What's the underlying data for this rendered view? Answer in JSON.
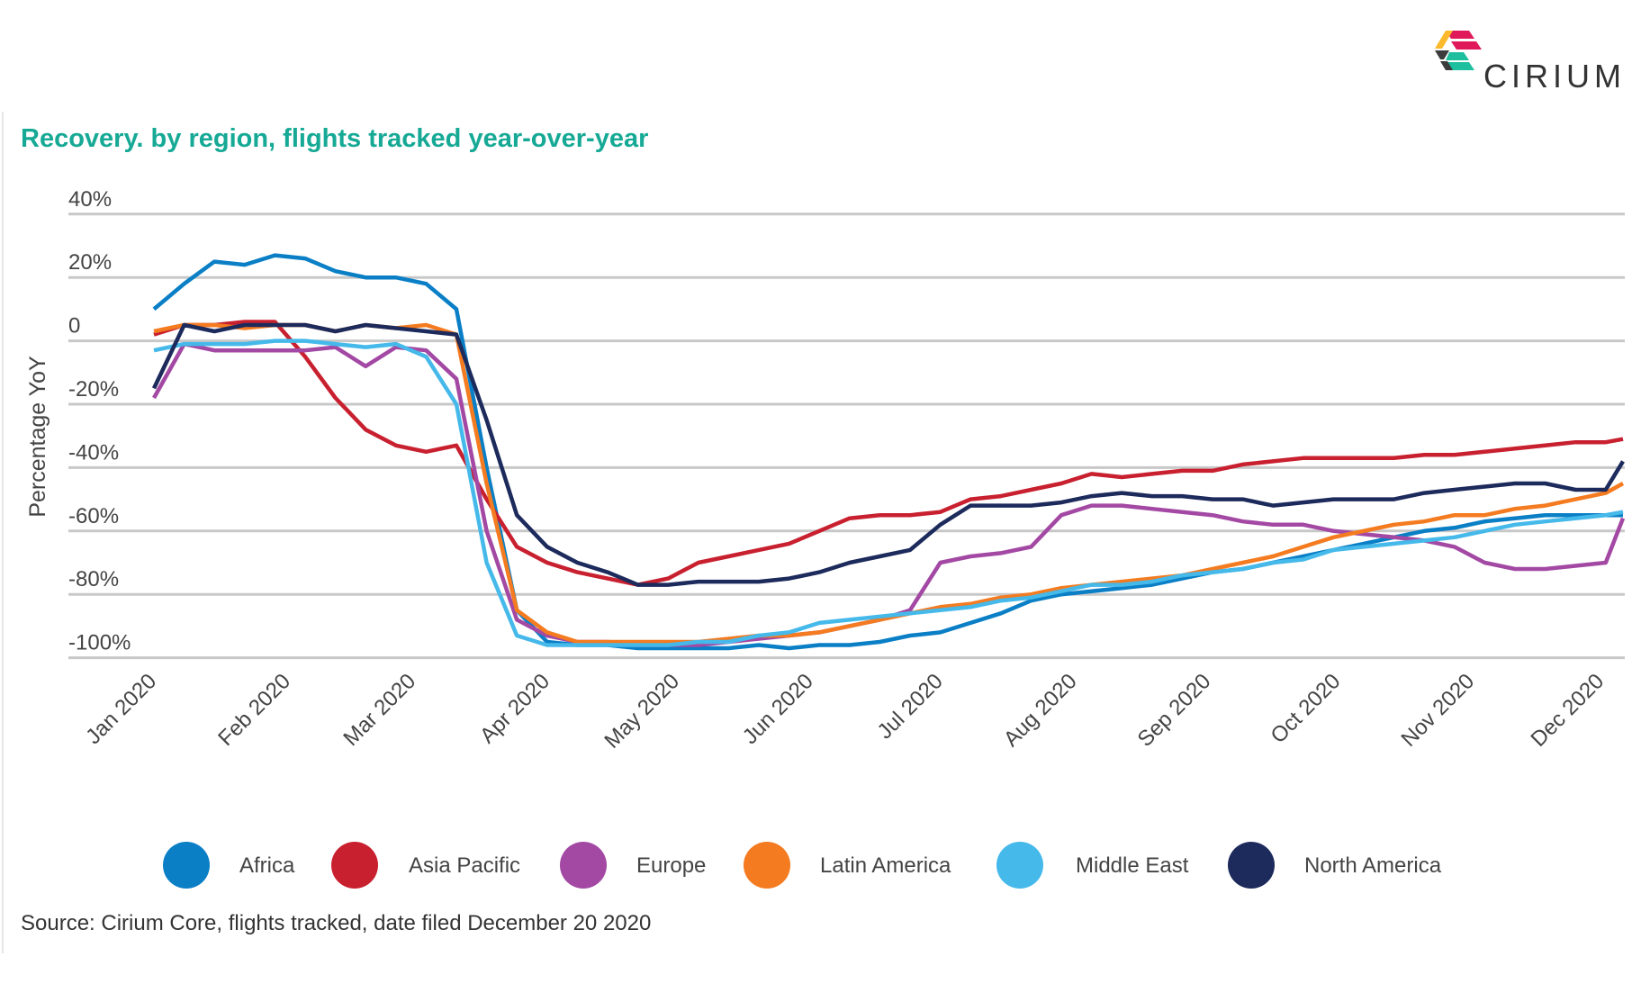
{
  "logo": {
    "text": "CIRIUM"
  },
  "title": "Recovery. by region, flights tracked year-over-year",
  "source": "Source: Cirium Core, flights tracked, date filed December 20 2020",
  "chart_data": {
    "type": "line",
    "title": "Recovery. by region, flights tracked year-over-year",
    "ylabel": "Percentage YoY",
    "xlabel": "",
    "ylim": [
      -100,
      40
    ],
    "yticks": [
      40,
      20,
      0,
      -20,
      -40,
      -60,
      -80,
      -100
    ],
    "ytick_labels": [
      "40%",
      "20%",
      "0",
      "-20%",
      "-40%",
      "-60%",
      "-80%",
      "-100%"
    ],
    "xtick_labels": [
      "Jan 2020",
      "Feb 2020",
      "Mar 2020",
      "Apr 2020",
      "May 2020",
      "Jun 2020",
      "Jul 2020",
      "Aug 2020",
      "Sep 2020",
      "Oct 2020",
      "Nov 2020",
      "Dec 2020"
    ],
    "xtick_dates": [
      "2020-01-01",
      "2020-02-01",
      "2020-03-01",
      "2020-04-01",
      "2020-05-01",
      "2020-06-01",
      "2020-07-01",
      "2020-08-01",
      "2020-09-01",
      "2020-10-01",
      "2020-11-01",
      "2020-12-01"
    ],
    "grid": "horizontal",
    "legend_placement": "bottom",
    "x": [
      "2020-01-01",
      "2020-01-08",
      "2020-01-15",
      "2020-01-22",
      "2020-01-29",
      "2020-02-05",
      "2020-02-12",
      "2020-02-19",
      "2020-02-26",
      "2020-03-04",
      "2020-03-11",
      "2020-03-18",
      "2020-03-25",
      "2020-04-01",
      "2020-04-08",
      "2020-04-15",
      "2020-04-22",
      "2020-04-29",
      "2020-05-06",
      "2020-05-13",
      "2020-05-20",
      "2020-05-27",
      "2020-06-03",
      "2020-06-10",
      "2020-06-17",
      "2020-06-24",
      "2020-07-01",
      "2020-07-08",
      "2020-07-15",
      "2020-07-22",
      "2020-07-29",
      "2020-08-05",
      "2020-08-12",
      "2020-08-19",
      "2020-08-26",
      "2020-09-02",
      "2020-09-09",
      "2020-09-16",
      "2020-09-23",
      "2020-09-30",
      "2020-10-07",
      "2020-10-14",
      "2020-10-21",
      "2020-10-28",
      "2020-11-04",
      "2020-11-11",
      "2020-11-18",
      "2020-11-25",
      "2020-12-02",
      "2020-12-06"
    ],
    "series": [
      {
        "name": "Africa",
        "color": "#0a7fc6",
        "values": [
          10,
          18,
          25,
          24,
          27,
          26,
          22,
          20,
          20,
          18,
          10,
          -40,
          -85,
          -95,
          -96,
          -96,
          -97,
          -97,
          -97,
          -97,
          -96,
          -97,
          -96,
          -96,
          -95,
          -93,
          -92,
          -89,
          -86,
          -82,
          -80,
          -79,
          -78,
          -77,
          -75,
          -73,
          -72,
          -70,
          -68,
          -66,
          -64,
          -62,
          -60,
          -59,
          -57,
          -56,
          -55,
          -55,
          -55,
          -55
        ]
      },
      {
        "name": "Asia Pacific",
        "color": "#c8202f",
        "values": [
          2,
          5,
          5,
          6,
          6,
          -5,
          -18,
          -28,
          -33,
          -35,
          -33,
          -50,
          -65,
          -70,
          -73,
          -75,
          -77,
          -75,
          -70,
          -68,
          -66,
          -64,
          -60,
          -56,
          -55,
          -55,
          -54,
          -50,
          -49,
          -47,
          -45,
          -42,
          -43,
          -42,
          -41,
          -41,
          -39,
          -38,
          -37,
          -37,
          -37,
          -37,
          -36,
          -36,
          -35,
          -34,
          -33,
          -32,
          -32,
          -31
        ]
      },
      {
        "name": "Europe",
        "color": "#a349a4",
        "values": [
          -18,
          -1,
          -3,
          -3,
          -3,
          -3,
          -2,
          -8,
          -2,
          -3,
          -12,
          -60,
          -88,
          -93,
          -95,
          -95,
          -96,
          -96,
          -96,
          -95,
          -94,
          -93,
          -92,
          -90,
          -88,
          -85,
          -70,
          -68,
          -67,
          -65,
          -55,
          -52,
          -52,
          -53,
          -54,
          -55,
          -57,
          -58,
          -58,
          -60,
          -61,
          -62,
          -63,
          -65,
          -70,
          -72,
          -72,
          -71,
          -70,
          -56
        ]
      },
      {
        "name": "Latin America",
        "color": "#f47b20",
        "values": [
          3,
          5,
          5,
          4,
          5,
          5,
          3,
          5,
          4,
          5,
          2,
          -45,
          -85,
          -92,
          -95,
          -95,
          -95,
          -95,
          -95,
          -94,
          -93,
          -93,
          -92,
          -90,
          -88,
          -86,
          -84,
          -83,
          -81,
          -80,
          -78,
          -77,
          -76,
          -75,
          -74,
          -72,
          -70,
          -68,
          -65,
          -62,
          -60,
          -58,
          -57,
          -55,
          -55,
          -53,
          -52,
          -50,
          -48,
          -45
        ]
      },
      {
        "name": "Middle East",
        "color": "#45b9ea",
        "values": [
          -3,
          -1,
          -1,
          -1,
          0,
          0,
          -1,
          -2,
          -1,
          -5,
          -20,
          -70,
          -93,
          -96,
          -96,
          -96,
          -96,
          -96,
          -95,
          -95,
          -93,
          -92,
          -89,
          -88,
          -87,
          -86,
          -85,
          -84,
          -82,
          -81,
          -79,
          -77,
          -77,
          -76,
          -74,
          -73,
          -72,
          -70,
          -69,
          -66,
          -65,
          -64,
          -63,
          -62,
          -60,
          -58,
          -57,
          -56,
          -55,
          -54
        ]
      },
      {
        "name": "North America",
        "color": "#1c2a5c",
        "values": [
          -15,
          5,
          3,
          5,
          5,
          5,
          3,
          5,
          4,
          3,
          2,
          -25,
          -55,
          -65,
          -70,
          -73,
          -77,
          -77,
          -76,
          -76,
          -76,
          -75,
          -73,
          -70,
          -68,
          -66,
          -58,
          -52,
          -52,
          -52,
          -51,
          -49,
          -48,
          -49,
          -49,
          -50,
          -50,
          -52,
          -51,
          -50,
          -50,
          -50,
          -48,
          -47,
          -46,
          -45,
          -45,
          -47,
          -47,
          -38
        ]
      }
    ]
  }
}
